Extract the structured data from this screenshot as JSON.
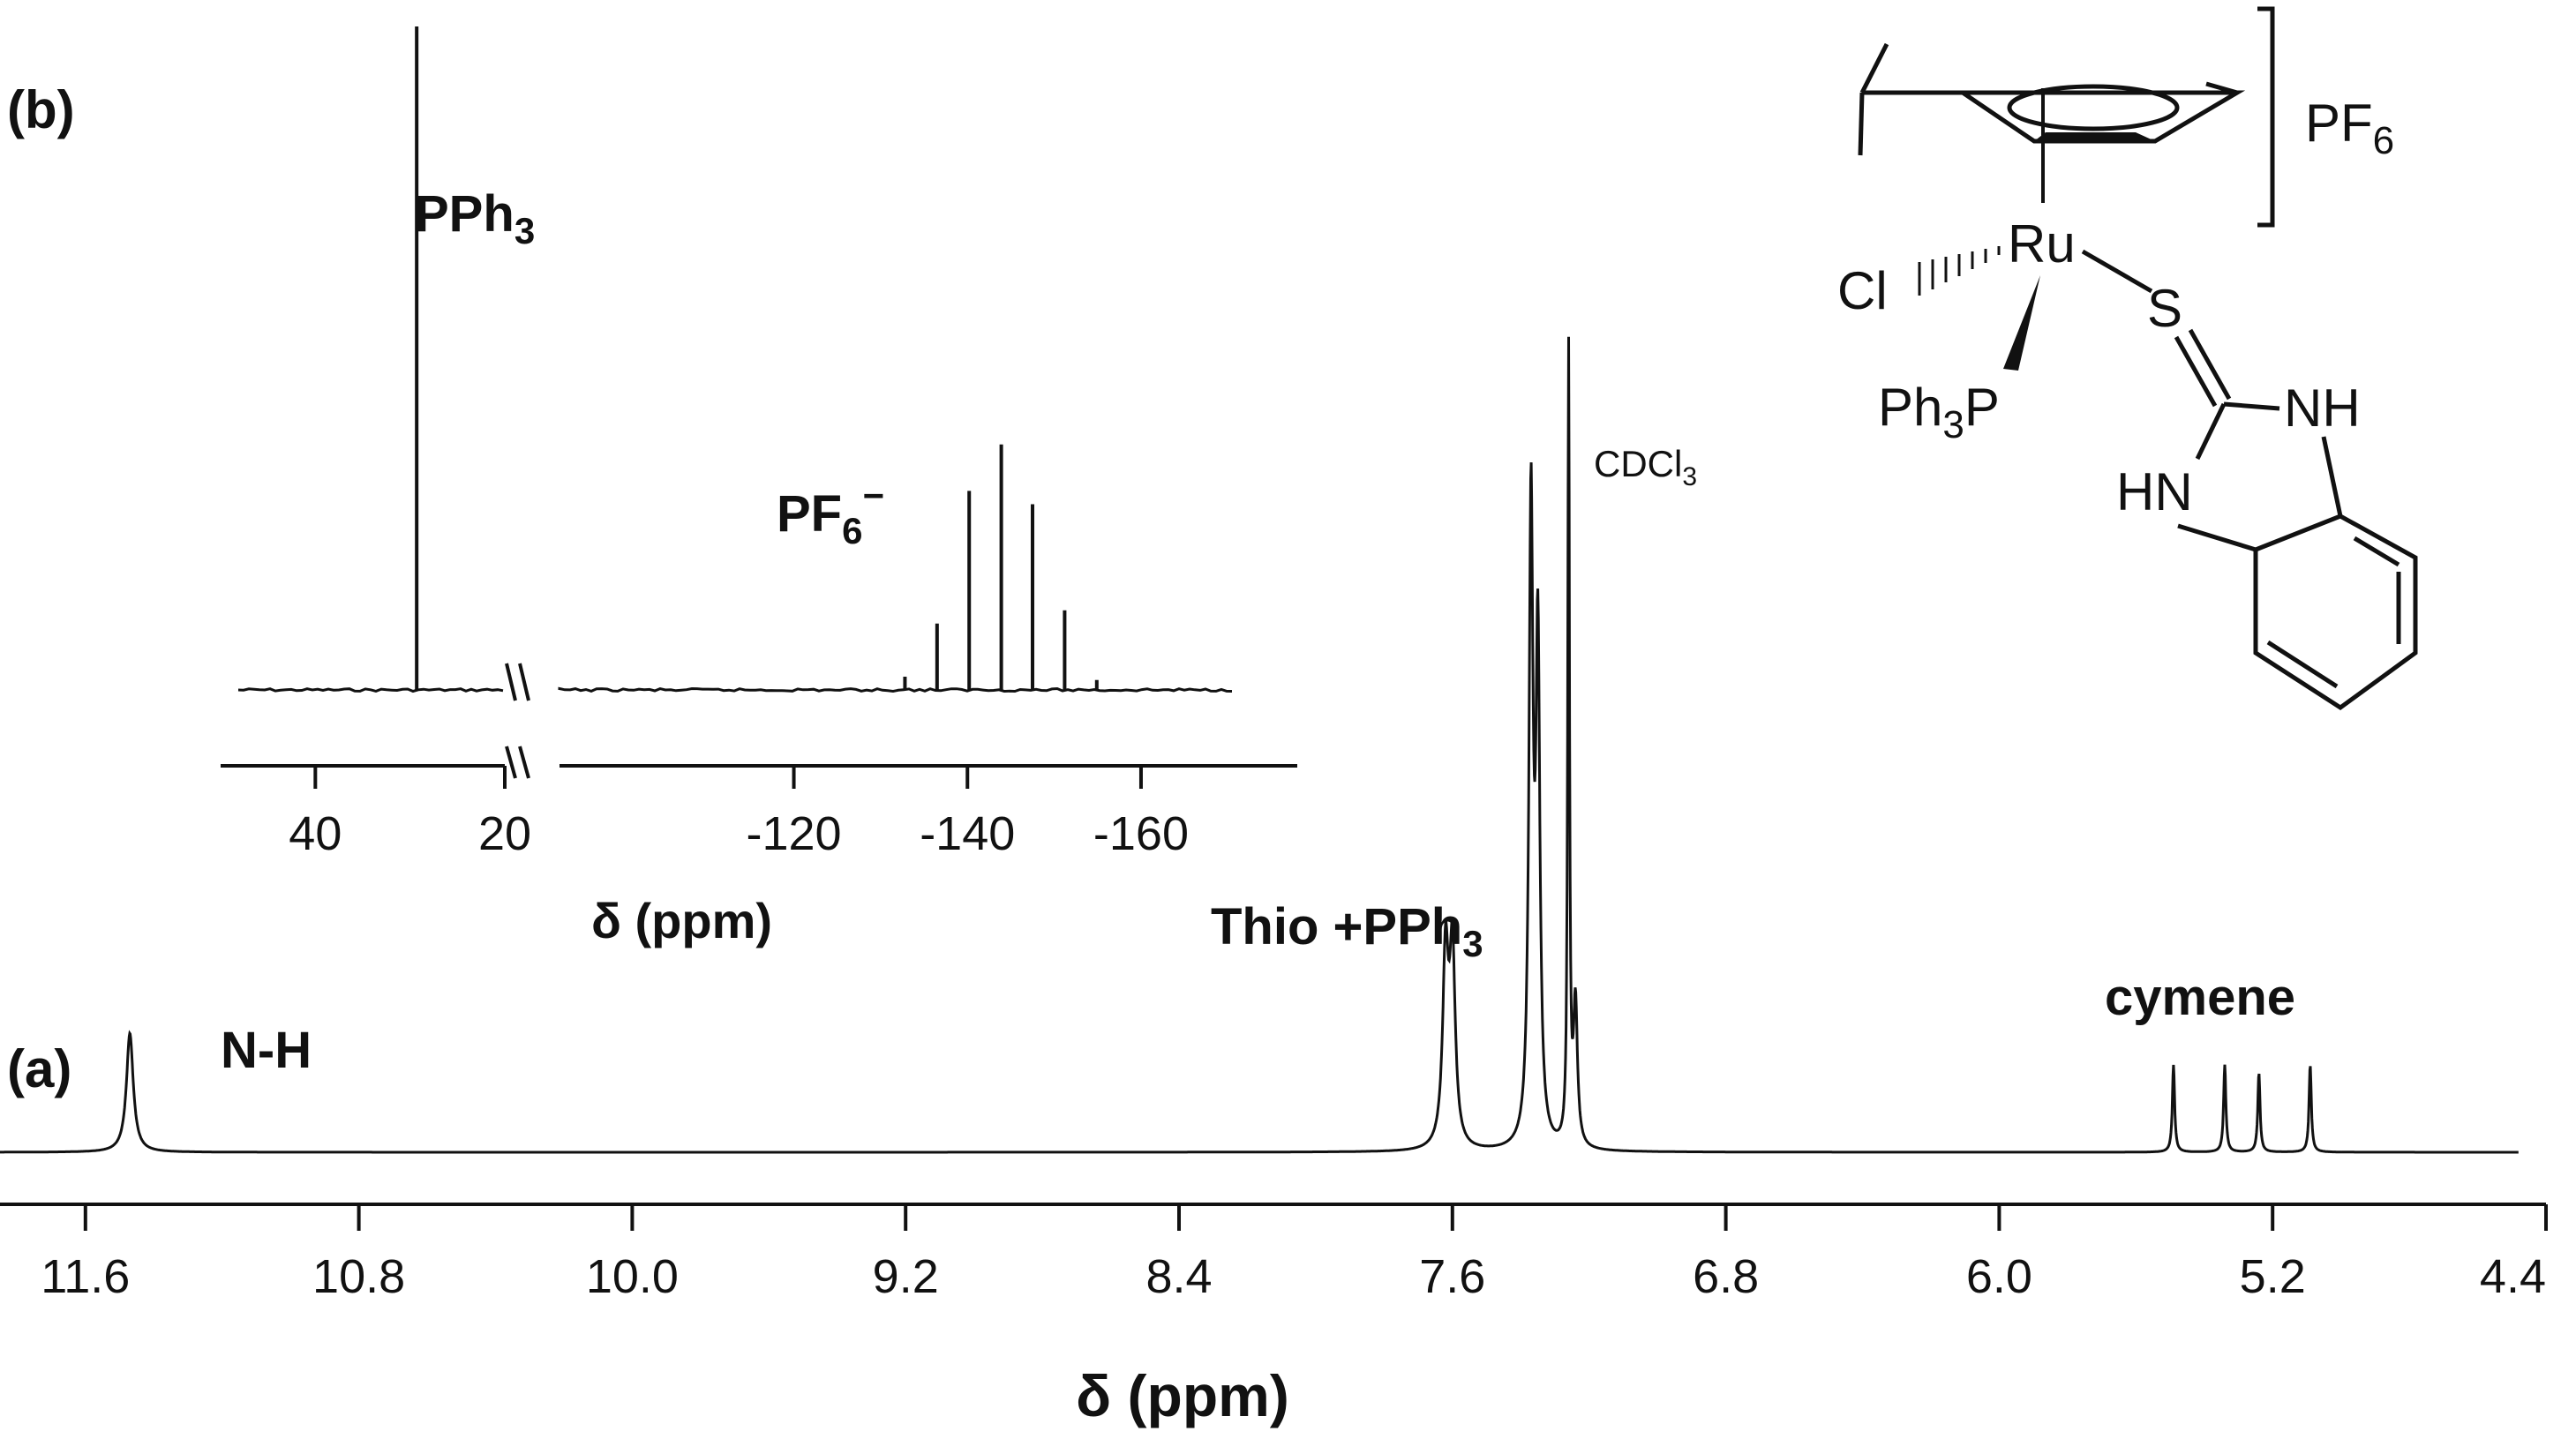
{
  "chart_data": [
    {
      "id": "a",
      "type": "line",
      "panel_label": "(a)",
      "xlabel": "δ (ppm)",
      "x_reversed": true,
      "xlim": [
        11.85,
        4.4
      ],
      "x_ticks": [
        11.6,
        10.8,
        10.0,
        9.2,
        8.4,
        7.6,
        6.8,
        6.0,
        5.2,
        4.4
      ],
      "x_tick_labels": [
        "11.6",
        "10.8",
        "10.0",
        "9.2",
        "8.4",
        "7.6",
        "6.8",
        "6.0",
        "5.2",
        "4.4"
      ],
      "peaks": [
        {
          "x": 11.47,
          "height": 0.15,
          "width": 0.012
        },
        {
          "x": 7.62,
          "height": 0.24,
          "width": 0.01
        },
        {
          "x": 7.6,
          "height": 0.24,
          "width": 0.01
        },
        {
          "x": 7.37,
          "height": 0.8,
          "width": 0.007
        },
        {
          "x": 7.35,
          "height": 0.62,
          "width": 0.007
        },
        {
          "x": 7.26,
          "height": 1.0,
          "width": 0.003
        },
        {
          "x": 7.24,
          "height": 0.18,
          "width": 0.007
        },
        {
          "x": 5.49,
          "height": 0.11,
          "width": 0.004
        },
        {
          "x": 5.34,
          "height": 0.11,
          "width": 0.004
        },
        {
          "x": 5.24,
          "height": 0.1,
          "width": 0.004
        },
        {
          "x": 5.09,
          "height": 0.11,
          "width": 0.004
        }
      ],
      "annotations": [
        {
          "label": "N-H",
          "x": 11.47
        },
        {
          "label": "Thio +PPh",
          "sub": "3",
          "x": 7.61
        },
        {
          "label": "CDCl",
          "sub": "3",
          "x": 7.26
        },
        {
          "label": "cymene",
          "x": 5.3
        }
      ]
    },
    {
      "id": "b",
      "type": "line",
      "panel_label": "(b)",
      "xlabel": "δ (ppm)",
      "x_reversed": true,
      "broken_axis": true,
      "segments": [
        {
          "xlim": [
            50,
            20
          ],
          "x_ticks": [
            40,
            20
          ],
          "x_tick_labels": [
            "40",
            "20"
          ]
        },
        {
          "xlim": [
            -93,
            -178
          ],
          "x_ticks": [
            -120,
            -140,
            -160
          ],
          "x_tick_labels": [
            "-120",
            "-140",
            "-160"
          ]
        }
      ],
      "peaks": [
        {
          "x": 29.3,
          "height": 1.0
        },
        {
          "x": -132.8,
          "height": 0.02
        },
        {
          "x": -136.5,
          "height": 0.1
        },
        {
          "x": -140.2,
          "height": 0.3
        },
        {
          "x": -143.9,
          "height": 0.37
        },
        {
          "x": -147.5,
          "height": 0.28
        },
        {
          "x": -151.2,
          "height": 0.12
        },
        {
          "x": -154.9,
          "height": 0.015
        }
      ],
      "annotations": [
        {
          "label": "PPh",
          "sub": "3",
          "x": 29.3
        },
        {
          "label": "PF",
          "sub": "6",
          "sup": "−",
          "x": -140
        }
      ]
    }
  ],
  "structure": {
    "ru": "Ru",
    "cl": "Cl",
    "s": "S",
    "p": "P",
    "ph": "Ph",
    "ph_sub": "3",
    "nh": "NH",
    "hn": "HN",
    "counterion": "PF",
    "counterion_sub": "6"
  }
}
